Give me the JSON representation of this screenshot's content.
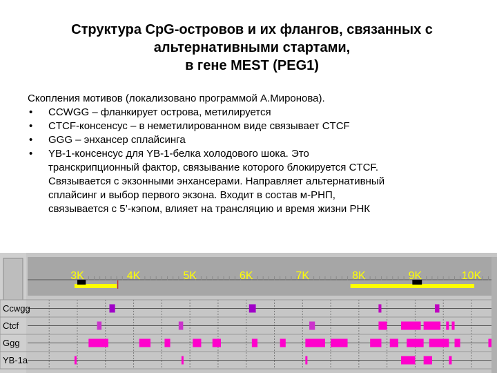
{
  "title": {
    "line1": "Структура CpG-островов и их флангов, связанных с",
    "line2": "альтернативными стартами,",
    "line3": "в гене MEST (PEG1)"
  },
  "intro": "Скопления мотивов (локализовано программой А.Миронова).",
  "bullets": [
    {
      "dot": "•",
      "lines": [
        "CCWGG – фланкирует острова, метилируется"
      ]
    },
    {
      "dot": "•",
      "lines": [
        "CTCF-консенсус – в неметилированном виде связывает CTCF"
      ]
    },
    {
      "dot": "•",
      "lines": [
        "GGG – энхансер сплайсинга"
      ]
    },
    {
      "dot": "•",
      "lines": [
        "YB-1-консенсус для YB-1-белка холодового шока. Это",
        "транскрипционный фактор, связывание которого блокируется CTCF.",
        "Связывается с экзонными энхансерами. Направляет альтернативный",
        "сплайсинг и выбор первого экзона. Входит в состав м-РНП,",
        "связывается с 5’-кэпом, влияет на трансляцию и время жизни РНК"
      ]
    }
  ],
  "genome_browser": {
    "axis_ticks": [
      {
        "label": "3K",
        "kb": 3
      },
      {
        "label": "4K",
        "kb": 4
      },
      {
        "label": "5K",
        "kb": 5
      },
      {
        "label": "6K",
        "kb": 6
      },
      {
        "label": "7K",
        "kb": 7
      },
      {
        "label": "8K",
        "kb": 8
      },
      {
        "label": "9K",
        "kb": 9
      },
      {
        "label": "10K",
        "kb": 10
      }
    ],
    "cpg_islands": [
      {
        "start_kb": 2.95,
        "end_kb": 3.7
      },
      {
        "start_kb": 7.85,
        "end_kb": 10.05
      }
    ],
    "exons": [
      {
        "start_kb": 3.0,
        "end_kb": 3.15
      },
      {
        "start_kb": 8.95,
        "end_kb": 9.12
      }
    ],
    "tracks": [
      {
        "name": "Ccwgg",
        "marks": [
          {
            "kb": 3.57,
            "w": 0.1,
            "color": "#a000c8"
          },
          {
            "kb": 6.05,
            "w": 0.12,
            "color": "#a000c8"
          },
          {
            "kb": 8.35,
            "w": 0.05,
            "color": "#c000c0"
          },
          {
            "kb": 9.35,
            "w": 0.08,
            "color": "#c000c0"
          }
        ]
      },
      {
        "name": "Ctcf",
        "marks": [
          {
            "kb": 3.35,
            "w": 0.08,
            "color": "#cc33cc"
          },
          {
            "kb": 4.8,
            "w": 0.08,
            "color": "#cc33cc"
          },
          {
            "kb": 7.12,
            "w": 0.1,
            "color": "#cc33cc"
          },
          {
            "kb": 8.35,
            "w": 0.15,
            "color": "#ff00cc"
          },
          {
            "kb": 8.75,
            "w": 0.35,
            "color": "#ff00cc"
          },
          {
            "kb": 9.15,
            "w": 0.3,
            "color": "#ff00cc"
          },
          {
            "kb": 9.55,
            "w": 0.05,
            "color": "#ff00cc"
          },
          {
            "kb": 9.65,
            "w": 0.05,
            "color": "#ff00cc"
          }
        ]
      },
      {
        "name": "Ggg",
        "marks": [
          {
            "kb": 3.2,
            "w": 0.35,
            "color": "#ff00cc"
          },
          {
            "kb": 4.1,
            "w": 0.2,
            "color": "#ff00cc"
          },
          {
            "kb": 4.55,
            "w": 0.1,
            "color": "#ff00cc"
          },
          {
            "kb": 5.05,
            "w": 0.15,
            "color": "#ff00cc"
          },
          {
            "kb": 5.4,
            "w": 0.15,
            "color": "#ff00cc"
          },
          {
            "kb": 6.1,
            "w": 0.1,
            "color": "#ff00cc"
          },
          {
            "kb": 6.6,
            "w": 0.1,
            "color": "#ff00cc"
          },
          {
            "kb": 7.05,
            "w": 0.35,
            "color": "#ff00cc"
          },
          {
            "kb": 7.5,
            "w": 0.3,
            "color": "#ff00cc"
          },
          {
            "kb": 8.2,
            "w": 0.2,
            "color": "#ff00cc"
          },
          {
            "kb": 8.55,
            "w": 0.15,
            "color": "#ff00cc"
          },
          {
            "kb": 8.85,
            "w": 0.3,
            "color": "#ff00cc"
          },
          {
            "kb": 9.25,
            "w": 0.35,
            "color": "#ff00cc"
          },
          {
            "kb": 9.7,
            "w": 0.1,
            "color": "#ff00cc"
          },
          {
            "kb": 10.3,
            "w": 0.1,
            "color": "#ff00cc"
          }
        ]
      },
      {
        "name": "YB-1a",
        "marks": [
          {
            "kb": 2.95,
            "w": 0.03,
            "color": "#ff00cc"
          },
          {
            "kb": 4.85,
            "w": 0.03,
            "color": "#ff00cc"
          },
          {
            "kb": 7.05,
            "w": 0.03,
            "color": "#ff00cc"
          },
          {
            "kb": 8.75,
            "w": 0.25,
            "color": "#ff00cc"
          },
          {
            "kb": 9.15,
            "w": 0.15,
            "color": "#ff00cc"
          },
          {
            "kb": 9.6,
            "w": 0.05,
            "color": "#ff00cc"
          }
        ]
      }
    ],
    "colors": {
      "panel_bg": "#c6c6c6",
      "ruler_bg": "#8a8a8a",
      "axis_text": "#ffff00",
      "cpg_island": "#ffff00",
      "exon": "#000000",
      "grid": "#7a7a7a",
      "track_line": "#555555"
    }
  }
}
